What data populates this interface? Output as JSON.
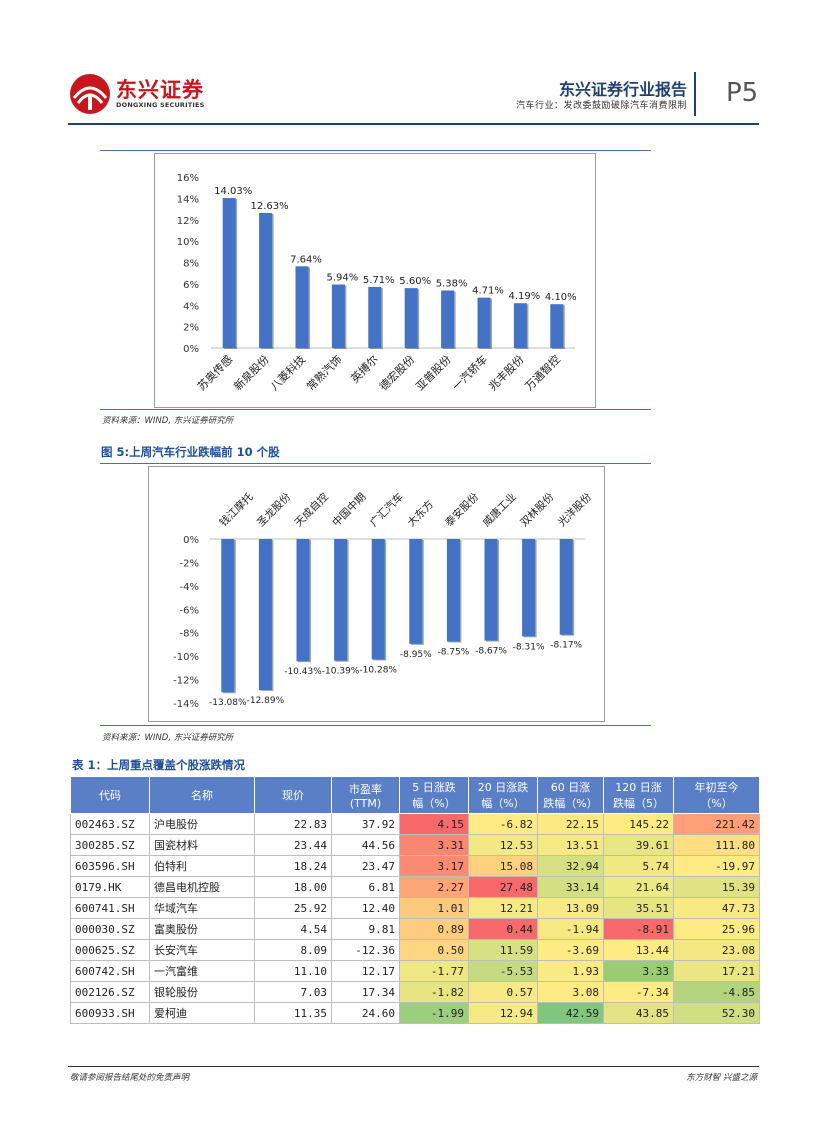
{
  "header": {
    "logo_cn": "东兴证券",
    "logo_en": "DONGXING SECURITIES",
    "report_title": "东兴证券行业报告",
    "report_subtitle": "汽车行业：发改委鼓励破除汽车消费限制",
    "page_number": "P5"
  },
  "chart1": {
    "source": "资料来源：WIND, 东兴证券研究所",
    "chart_data": {
      "type": "bar",
      "title": "",
      "categories": [
        "苏奥传感",
        "新泉股份",
        "八菱科技",
        "常熟汽饰",
        "英搏尔",
        "德宏股份",
        "亚普股份",
        "一汽轿车",
        "兆丰股份",
        "万通智控"
      ],
      "values": [
        14.03,
        12.63,
        7.64,
        5.94,
        5.71,
        5.6,
        5.38,
        4.71,
        4.19,
        4.1
      ],
      "labels": [
        "14.03%",
        "12.63%",
        "7.64%",
        "5.94%",
        "5.71%",
        "5.60%",
        "5.38%",
        "4.71%",
        "4.19%",
        "4.10%"
      ],
      "yticks": [
        "0%",
        "2%",
        "4%",
        "6%",
        "8%",
        "10%",
        "12%",
        "14%",
        "16%"
      ],
      "ylim": [
        0,
        16
      ],
      "bar_color": "#4472c4"
    }
  },
  "chart2": {
    "figure_title": "图 5:上周汽车行业跌幅前 10 个股",
    "source": "资料来源：WIND, 东兴证券研究所",
    "chart_data": {
      "type": "bar",
      "title": "图 5:上周汽车行业跌幅前 10 个股",
      "categories": [
        "钱江摩托",
        "圣龙股份",
        "天成自控",
        "中国中期",
        "广汇汽车",
        "大东方",
        "泰安股份",
        "威唐工业",
        "双林股份",
        "光洋股份"
      ],
      "values": [
        -13.08,
        -12.89,
        -10.43,
        -10.39,
        -10.28,
        -8.95,
        -8.75,
        -8.67,
        -8.31,
        -8.17
      ],
      "labels": [
        "-13.08%",
        "-12.89%",
        "-10.43%",
        "-10.39%",
        "-10.28%",
        "-8.95%",
        "-8.75%",
        "-8.67%",
        "-8.31%",
        "-8.17%"
      ],
      "yticks": [
        "0%",
        "-2%",
        "-4%",
        "-6%",
        "-8%",
        "-10%",
        "-12%",
        "-14%"
      ],
      "ylim": [
        -14,
        0
      ],
      "bar_color": "#4472c4"
    }
  },
  "table": {
    "title": "表 1：上周重点覆盖个股涨跌情况",
    "headers": [
      "代码",
      "名称",
      "现价",
      "市盈率\n(TTM)",
      "5 日涨跌\n幅（%）",
      "20 日涨跌\n幅（%）",
      "60 日涨\n跌幅（%）",
      "120 日涨\n跌幅（5）",
      "年初至今\n（%）"
    ],
    "rows": [
      [
        "002463.SZ",
        "沪电股份",
        "22.83",
        "37.92",
        "4.15",
        "-6.82",
        "22.15",
        "145.22",
        "221.42"
      ],
      [
        "300285.SZ",
        "国瓷材料",
        "23.44",
        "44.56",
        "3.31",
        "12.53",
        "13.51",
        "39.61",
        "111.80"
      ],
      [
        "603596.SH",
        "伯特利",
        "18.24",
        "23.47",
        "3.17",
        "15.08",
        "32.94",
        "5.74",
        "-19.97"
      ],
      [
        "0179.HK",
        "德昌电机控股",
        "18.00",
        "6.81",
        "2.27",
        "27.48",
        "33.14",
        "21.64",
        "15.39"
      ],
      [
        "600741.SH",
        "华域汽车",
        "25.92",
        "12.40",
        "1.01",
        "12.21",
        "13.09",
        "35.51",
        "47.73"
      ],
      [
        "000030.SZ",
        "富奥股份",
        "4.54",
        "9.81",
        "0.89",
        "0.44",
        "-1.94",
        "-8.91",
        "25.96"
      ],
      [
        "000625.SZ",
        "长安汽车",
        "8.09",
        "-12.36",
        "0.50",
        "11.59",
        "-3.69",
        "13.44",
        "23.08"
      ],
      [
        "600742.SH",
        "一汽富维",
        "11.10",
        "12.17",
        "-1.77",
        "-5.53",
        "1.93",
        "3.33",
        "17.21"
      ],
      [
        "002126.SZ",
        "银轮股份",
        "7.03",
        "17.34",
        "-1.82",
        "0.57",
        "3.08",
        "-7.34",
        "-4.85"
      ],
      [
        "600933.SH",
        "爱柯迪",
        "11.35",
        "24.60",
        "-1.99",
        "12.94",
        "42.59",
        "43.85",
        "52.30"
      ]
    ],
    "cell_colors": [
      [
        "#f8696b",
        "#ffeb84",
        "#fbe984",
        "#ffeb84",
        "#fe9f7a"
      ],
      [
        "#f98670",
        "#f3e884",
        "#f5e984",
        "#e8e583",
        "#ffdf81"
      ],
      [
        "#fa8a71",
        "#ffd07e",
        "#d6e082",
        "#f1e783",
        "#ffeb84"
      ],
      [
        "#fca577",
        "#f8696b",
        "#d2df82",
        "#ecea83",
        "#e0e383"
      ],
      [
        "#fdc97d",
        "#f6e984",
        "#f7e984",
        "#e6e483",
        "#f9e983"
      ],
      [
        "#fecc7e",
        "#f8696b",
        "#f5e984",
        "#f8696b",
        "#feeb84"
      ],
      [
        "#ffd680",
        "#d7e082",
        "#fdeb84",
        "#ffeb84",
        "#f3e884"
      ],
      [
        "#eee784",
        "#c6db81",
        "#f9ea84",
        "#9acd72",
        "#e9e683"
      ],
      [
        "#e6e483",
        "#f6e984",
        "#ffeb84",
        "#ffeb84",
        "#b2d47d"
      ],
      [
        "#9bce7d",
        "#f5e984",
        "#7ec77c",
        "#e4e383",
        "#cfdf82"
      ]
    ]
  },
  "footer": {
    "left": "敬请参阅报告结尾处的免责声明",
    "right": "东方财智 兴盛之源"
  }
}
